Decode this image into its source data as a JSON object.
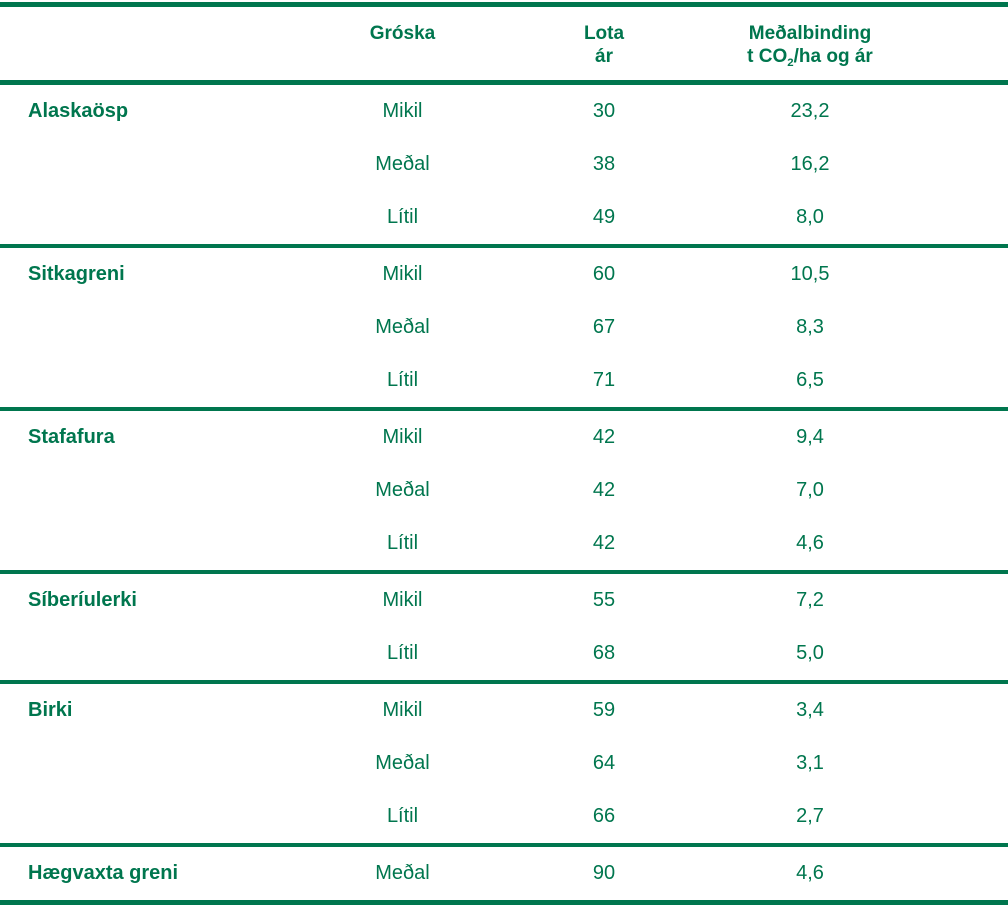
{
  "colors": {
    "green": "#00764E",
    "background": "#FFFFFF"
  },
  "table": {
    "headers": {
      "species": "",
      "groska": "Gróska",
      "lota_line1": "Lota",
      "lota_line2": "ár",
      "binding_line1": "Meðalbinding",
      "binding_line2_pre": "t CO",
      "binding_sub": "2",
      "binding_line2_post": "/ha og ár"
    },
    "sections": [
      {
        "species": "Alaskaösp",
        "rows": [
          {
            "groska": "Mikil",
            "lota": "30",
            "binding": "23,2"
          },
          {
            "groska": "Meðal",
            "lota": "38",
            "binding": "16,2"
          },
          {
            "groska": "Lítil",
            "lota": "49",
            "binding": "8,0"
          }
        ]
      },
      {
        "species": "Sitkagreni",
        "rows": [
          {
            "groska": "Mikil",
            "lota": "60",
            "binding": "10,5"
          },
          {
            "groska": "Meðal",
            "lota": "67",
            "binding": "8,3"
          },
          {
            "groska": "Lítil",
            "lota": "71",
            "binding": "6,5"
          }
        ]
      },
      {
        "species": "Stafafura",
        "rows": [
          {
            "groska": "Mikil",
            "lota": "42",
            "binding": "9,4"
          },
          {
            "groska": "Meðal",
            "lota": "42",
            "binding": "7,0"
          },
          {
            "groska": "Lítil",
            "lota": "42",
            "binding": "4,6"
          }
        ]
      },
      {
        "species": "Síberíulerki",
        "rows": [
          {
            "groska": "Mikil",
            "lota": "55",
            "binding": "7,2"
          },
          {
            "groska": "Lítil",
            "lota": "68",
            "binding": "5,0"
          }
        ]
      },
      {
        "species": "Birki",
        "rows": [
          {
            "groska": "Mikil",
            "lota": "59",
            "binding": "3,4"
          },
          {
            "groska": "Meðal",
            "lota": "64",
            "binding": "3,1"
          },
          {
            "groska": "Lítil",
            "lota": "66",
            "binding": "2,7"
          }
        ]
      },
      {
        "species": "Hægvaxta greni",
        "rows": [
          {
            "groska": "Meðal",
            "lota": "90",
            "binding": "4,6"
          }
        ]
      }
    ]
  },
  "chart_data": {
    "type": "table",
    "columns": [
      "",
      "Gróska",
      "Lota ár",
      "Meðalbinding t CO2/ha og ár"
    ],
    "rows": [
      [
        "Alaskaösp",
        "Mikil",
        30,
        23.2
      ],
      [
        "Alaskaösp",
        "Meðal",
        38,
        16.2
      ],
      [
        "Alaskaösp",
        "Lítil",
        49,
        8.0
      ],
      [
        "Sitkagreni",
        "Mikil",
        60,
        10.5
      ],
      [
        "Sitkagreni",
        "Meðal",
        67,
        8.3
      ],
      [
        "Sitkagreni",
        "Lítil",
        71,
        6.5
      ],
      [
        "Stafafura",
        "Mikil",
        42,
        9.4
      ],
      [
        "Stafafura",
        "Meðal",
        42,
        7.0
      ],
      [
        "Stafafura",
        "Lítil",
        42,
        4.6
      ],
      [
        "Síberíulerki",
        "Mikil",
        55,
        7.2
      ],
      [
        "Síberíulerki",
        "Lítil",
        68,
        5.0
      ],
      [
        "Birki",
        "Mikil",
        59,
        3.4
      ],
      [
        "Birki",
        "Meðal",
        64,
        3.1
      ],
      [
        "Birki",
        "Lítil",
        66,
        2.7
      ],
      [
        "Hægvaxta greni",
        "Meðal",
        90,
        4.6
      ]
    ],
    "decimal_separator_displayed": ",",
    "text_color": "#00764E"
  }
}
